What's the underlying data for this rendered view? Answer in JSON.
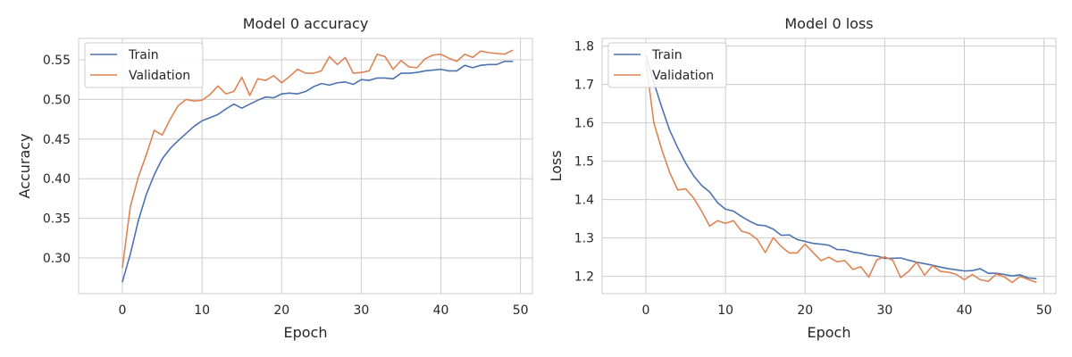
{
  "colors": {
    "train": "#4c72b0",
    "validation": "#dd8452"
  },
  "chart_data": [
    {
      "type": "line",
      "title": "Model 0 accuracy",
      "xlabel": "Epoch",
      "ylabel": "Accuracy",
      "xlim": [
        -5.5,
        51.5
      ],
      "ylim": [
        0.255,
        0.577
      ],
      "xticks": [
        0,
        10,
        20,
        30,
        40,
        50
      ],
      "yticks": [
        0.3,
        0.35,
        0.4,
        0.45,
        0.5,
        0.55
      ],
      "ytick_labels": [
        "0.30",
        "0.35",
        "0.40",
        "0.45",
        "0.50",
        "0.55"
      ],
      "grid": true,
      "legend": "upper-left",
      "x": [
        0,
        1,
        2,
        3,
        4,
        5,
        6,
        7,
        8,
        9,
        10,
        11,
        12,
        13,
        14,
        15,
        16,
        17,
        18,
        19,
        20,
        21,
        22,
        23,
        24,
        25,
        26,
        27,
        28,
        29,
        30,
        31,
        32,
        33,
        34,
        35,
        36,
        37,
        38,
        39,
        40,
        41,
        42,
        43,
        44,
        45,
        46,
        47,
        48,
        49
      ],
      "series": [
        {
          "name": "Train",
          "values": [
            0.27,
            0.305,
            0.347,
            0.38,
            0.405,
            0.425,
            0.438,
            0.448,
            0.457,
            0.466,
            0.473,
            0.477,
            0.481,
            0.488,
            0.494,
            0.489,
            0.494,
            0.499,
            0.503,
            0.502,
            0.507,
            0.508,
            0.507,
            0.51,
            0.516,
            0.52,
            0.518,
            0.521,
            0.522,
            0.519,
            0.525,
            0.524,
            0.527,
            0.527,
            0.526,
            0.533,
            0.533,
            0.534,
            0.536,
            0.537,
            0.538,
            0.536,
            0.536,
            0.543,
            0.54,
            0.543,
            0.544,
            0.544,
            0.548,
            0.548
          ]
        },
        {
          "name": "Validation",
          "values": [
            0.288,
            0.365,
            0.402,
            0.43,
            0.461,
            0.455,
            0.475,
            0.492,
            0.5,
            0.498,
            0.499,
            0.506,
            0.517,
            0.507,
            0.51,
            0.528,
            0.505,
            0.526,
            0.524,
            0.53,
            0.521,
            0.529,
            0.538,
            0.533,
            0.533,
            0.536,
            0.554,
            0.544,
            0.553,
            0.533,
            0.534,
            0.536,
            0.557,
            0.554,
            0.538,
            0.549,
            0.541,
            0.54,
            0.551,
            0.556,
            0.557,
            0.552,
            0.548,
            0.557,
            0.553,
            0.561,
            0.559,
            0.558,
            0.557,
            0.562
          ]
        }
      ]
    },
    {
      "type": "line",
      "title": "Model 0 loss",
      "xlabel": "Epoch",
      "ylabel": "Loss",
      "xlim": [
        -5.5,
        51.5
      ],
      "ylim": [
        1.155,
        1.82
      ],
      "xticks": [
        0,
        10,
        20,
        30,
        40,
        50
      ],
      "yticks": [
        1.2,
        1.3,
        1.4,
        1.5,
        1.6,
        1.7,
        1.8
      ],
      "ytick_labels": [
        "1.2",
        "1.3",
        "1.4",
        "1.5",
        "1.6",
        "1.7",
        "1.8"
      ],
      "grid": true,
      "legend": "upper-left",
      "x": [
        0,
        1,
        2,
        3,
        4,
        5,
        6,
        7,
        8,
        9,
        10,
        11,
        12,
        13,
        14,
        15,
        16,
        17,
        18,
        19,
        20,
        21,
        22,
        23,
        24,
        25,
        26,
        27,
        28,
        29,
        30,
        31,
        32,
        33,
        34,
        35,
        36,
        37,
        38,
        39,
        40,
        41,
        42,
        43,
        44,
        45,
        46,
        47,
        48,
        49
      ],
      "series": [
        {
          "name": "Train",
          "values": [
            1.775,
            1.705,
            1.64,
            1.58,
            1.535,
            1.495,
            1.462,
            1.437,
            1.42,
            1.392,
            1.375,
            1.37,
            1.356,
            1.344,
            1.334,
            1.332,
            1.323,
            1.307,
            1.308,
            1.296,
            1.291,
            1.286,
            1.284,
            1.281,
            1.27,
            1.269,
            1.263,
            1.26,
            1.255,
            1.253,
            1.247,
            1.247,
            1.248,
            1.242,
            1.237,
            1.233,
            1.229,
            1.224,
            1.22,
            1.217,
            1.214,
            1.215,
            1.22,
            1.208,
            1.208,
            1.205,
            1.201,
            1.204,
            1.196,
            1.194
          ]
        },
        {
          "name": "Validation",
          "values": [
            1.76,
            1.6,
            1.53,
            1.47,
            1.425,
            1.428,
            1.404,
            1.37,
            1.331,
            1.345,
            1.338,
            1.345,
            1.318,
            1.312,
            1.296,
            1.262,
            1.301,
            1.278,
            1.261,
            1.261,
            1.284,
            1.262,
            1.241,
            1.25,
            1.238,
            1.241,
            1.218,
            1.225,
            1.198,
            1.243,
            1.251,
            1.242,
            1.197,
            1.213,
            1.237,
            1.203,
            1.228,
            1.213,
            1.211,
            1.205,
            1.191,
            1.205,
            1.191,
            1.187,
            1.206,
            1.199,
            1.184,
            1.2,
            1.192,
            1.185
          ]
        }
      ]
    }
  ]
}
